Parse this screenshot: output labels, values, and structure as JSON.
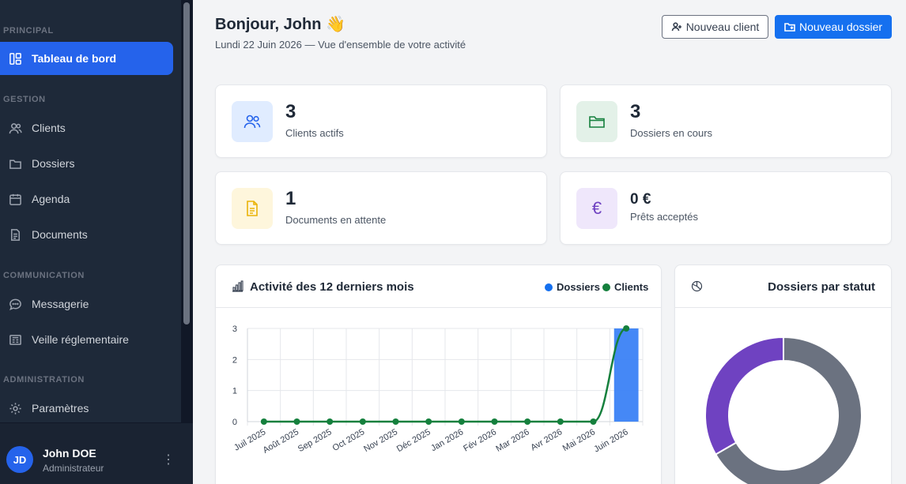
{
  "sidebar": {
    "sections": {
      "principal": "PRINCIPAL",
      "gestion": "GESTION",
      "communication": "COMMUNICATION",
      "administration": "ADMINISTRATION"
    },
    "items": {
      "dashboard": "Tableau de bord",
      "clients": "Clients",
      "dossiers": "Dossiers",
      "agenda": "Agenda",
      "documents": "Documents",
      "messagerie": "Messagerie",
      "veille": "Veille réglementaire",
      "parametres": "Paramètres"
    },
    "user": {
      "initials": "JD",
      "name": "John DOE",
      "role": "Administrateur"
    }
  },
  "header": {
    "greeting": "Bonjour, John",
    "wave": "👋",
    "subtitle": "Lundi 22 Juin 2026 — Vue d'ensemble de votre activité",
    "new_client": "Nouveau client",
    "new_dossier": "Nouveau dossier"
  },
  "stats": {
    "clients": {
      "value": "3",
      "label": "Clients actifs"
    },
    "dossiers": {
      "value": "3",
      "label": "Dossiers en cours"
    },
    "documents": {
      "value": "1",
      "label": "Documents en attente"
    },
    "prets": {
      "value": "0 €",
      "label": "Prêts acceptés"
    }
  },
  "colors": {
    "accent": "#2563eb",
    "dossiers": "#1570ef",
    "clients": "#15803d",
    "violet": "#6f42c1",
    "gray": "#6b7280"
  },
  "activity": {
    "title": "Activité des 12 derniers mois",
    "legend": {
      "dossiers": "Dossiers",
      "clients": "Clients"
    }
  },
  "status": {
    "title": "Dossiers par statut"
  },
  "chart_data": [
    {
      "type": "bar",
      "title": "Activité des 12 derniers mois",
      "categories": [
        "Juil 2025",
        "Août 2025",
        "Sep 2025",
        "Oct 2025",
        "Nov 2025",
        "Déc 2025",
        "Jan 2026",
        "Fév 2026",
        "Mar 2026",
        "Avr 2026",
        "Mai 2026",
        "Juin 2026"
      ],
      "yticks": [
        "0",
        "1",
        "2",
        "3"
      ],
      "ylim": [
        0,
        3
      ],
      "grid": true,
      "legend_position": "top-right",
      "series": [
        {
          "name": "Dossiers",
          "kind": "bar",
          "color": "#3b82f6",
          "values": [
            0,
            0,
            0,
            0,
            0,
            0,
            0,
            0,
            0,
            0,
            0,
            3
          ]
        },
        {
          "name": "Clients",
          "kind": "line",
          "color": "#15803d",
          "values": [
            0,
            0,
            0,
            0,
            0,
            0,
            0,
            0,
            0,
            0,
            0,
            3
          ]
        }
      ]
    },
    {
      "type": "pie",
      "title": "Dossiers par statut",
      "donut": true,
      "values": [
        2,
        1
      ],
      "colors": [
        "#6b7280",
        "#6f42c1"
      ]
    }
  ]
}
